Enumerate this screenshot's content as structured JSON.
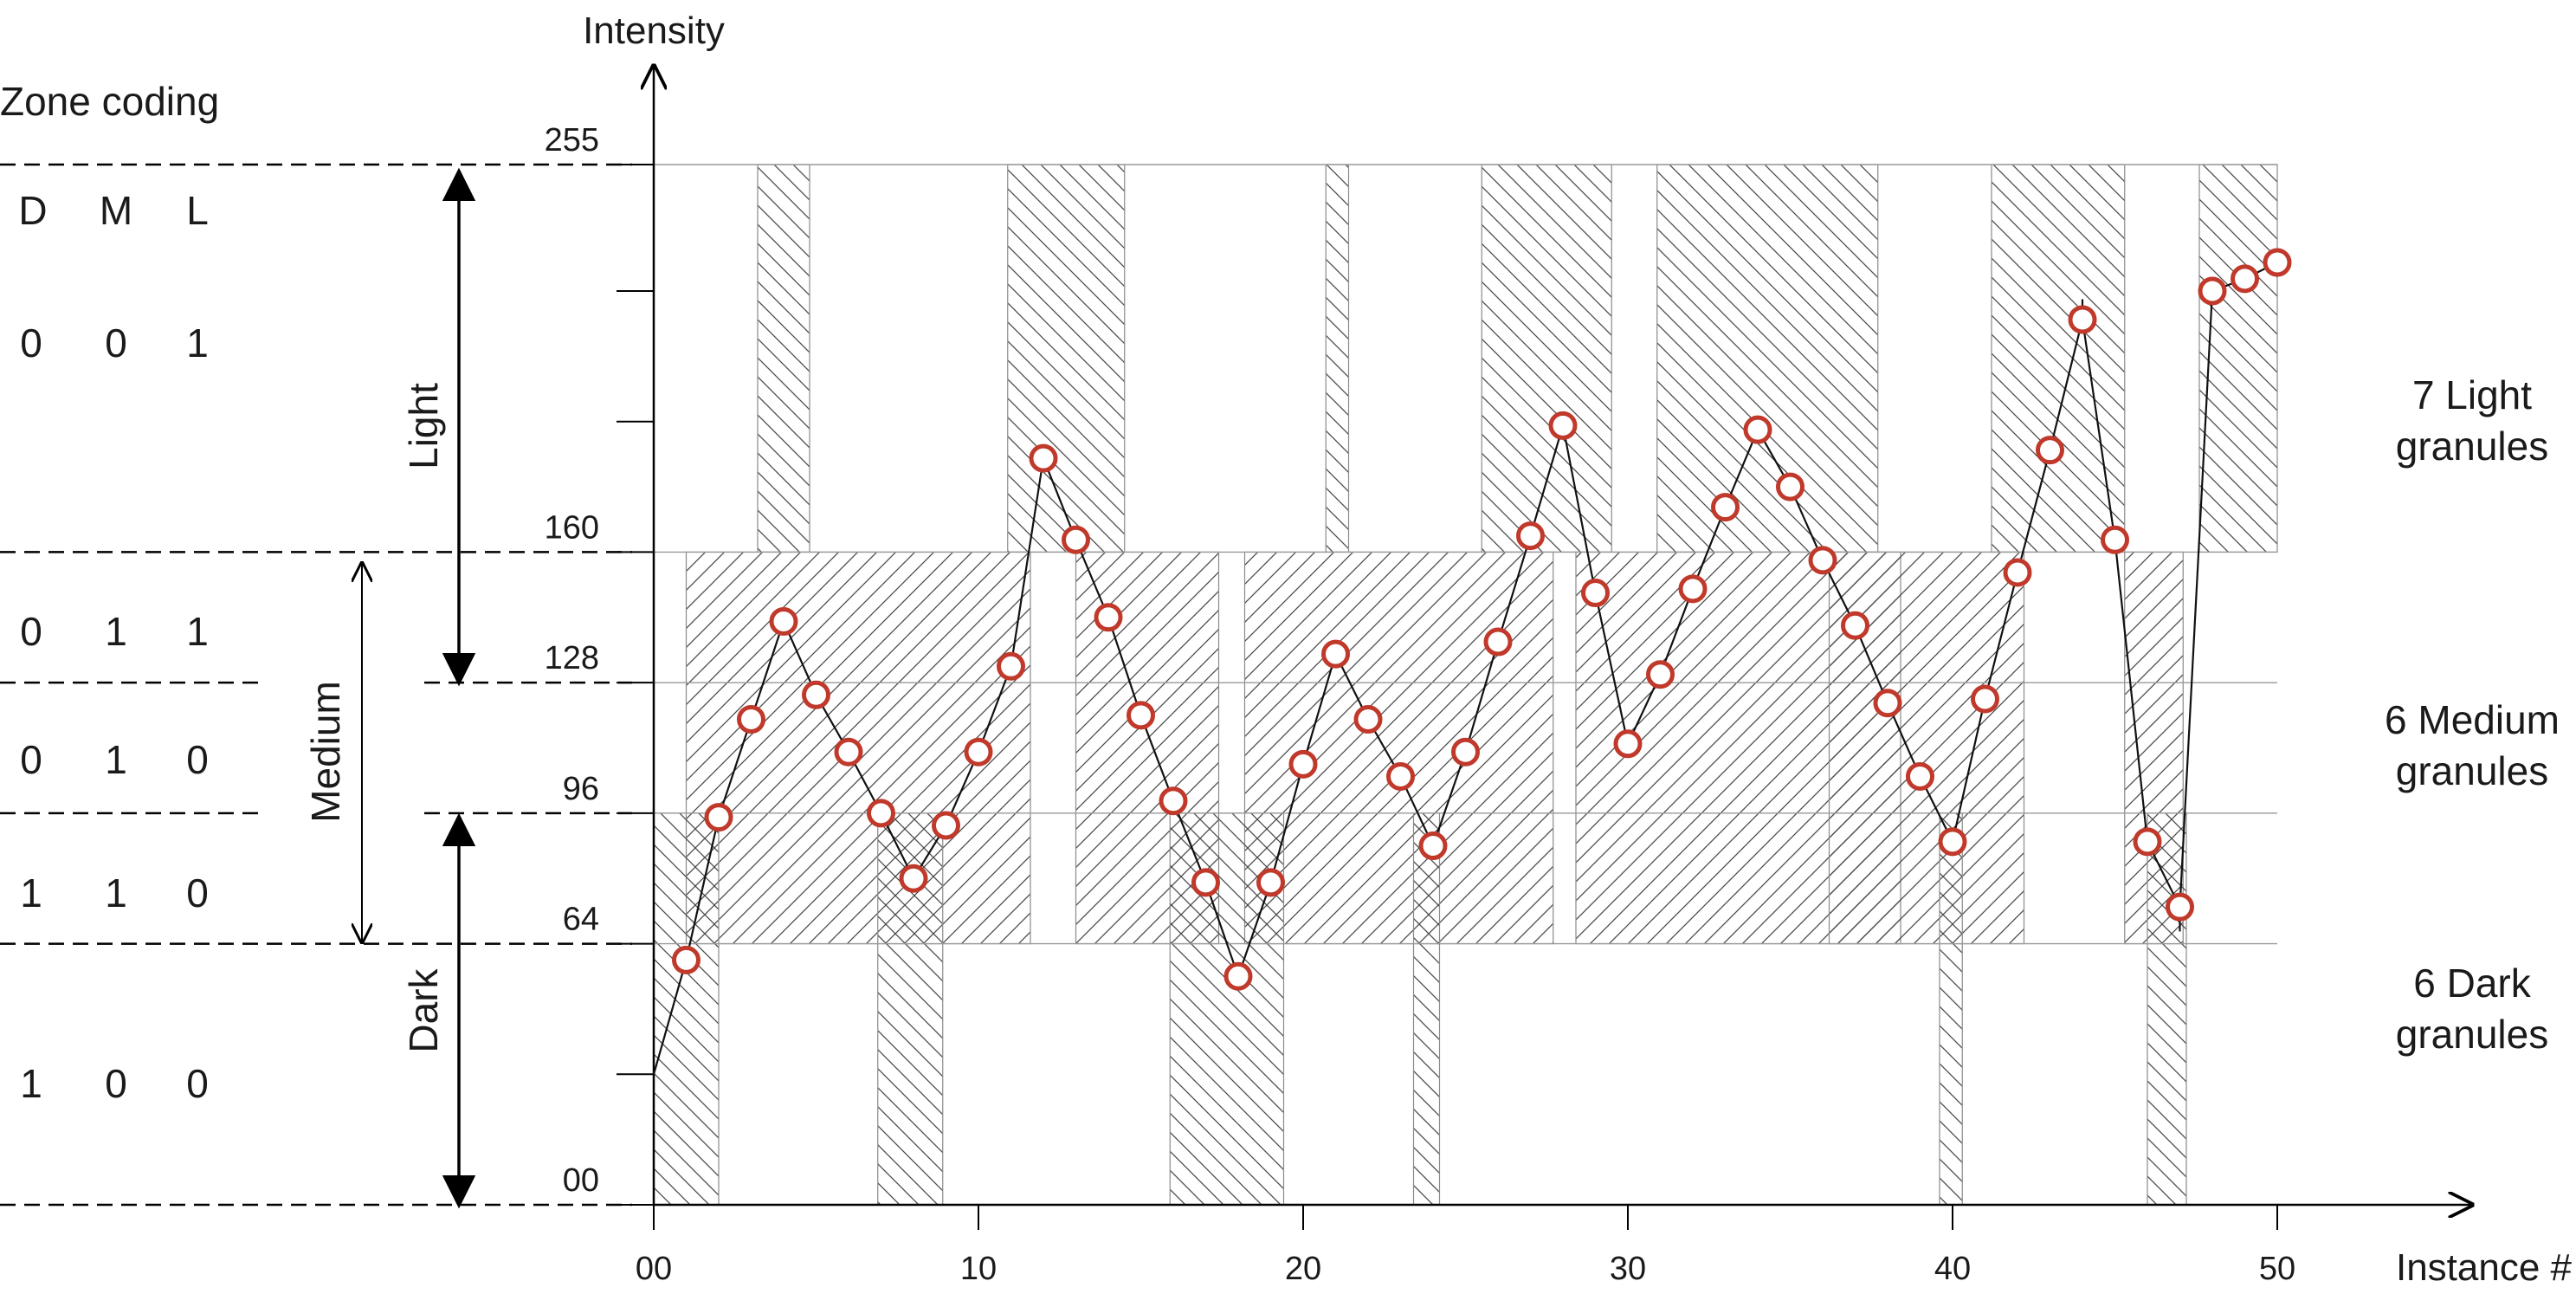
{
  "chart_data": {
    "type": "line",
    "ylabel": "Intensity",
    "xlabel": "Instance #",
    "xlim": [
      0,
      50
    ],
    "ylim": [
      0,
      255
    ],
    "x_ticks": [
      {
        "value": 0,
        "label": "00"
      },
      {
        "value": 10,
        "label": "10"
      },
      {
        "value": 20,
        "label": "20"
      },
      {
        "value": 30,
        "label": "30"
      },
      {
        "value": 40,
        "label": "40"
      },
      {
        "value": 50,
        "label": "50"
      }
    ],
    "y_ticks": [
      {
        "value": 0,
        "label": "00"
      },
      {
        "value": 64,
        "label": "64"
      },
      {
        "value": 96,
        "label": "96"
      },
      {
        "value": 128,
        "label": "128"
      },
      {
        "value": 160,
        "label": "160"
      },
      {
        "value": 255,
        "label": "255"
      }
    ],
    "y_minor_ticks": [
      32,
      192,
      224
    ],
    "thresholds": [
      64,
      96,
      128,
      160
    ],
    "points": [
      [
        0,
        32
      ],
      [
        1,
        60
      ],
      [
        2,
        95
      ],
      [
        3,
        119
      ],
      [
        4,
        143
      ],
      [
        5,
        125
      ],
      [
        6,
        111
      ],
      [
        7,
        96
      ],
      [
        8,
        80
      ],
      [
        9,
        93
      ],
      [
        10,
        111
      ],
      [
        11,
        132
      ],
      [
        12,
        183
      ],
      [
        13,
        163
      ],
      [
        14,
        144
      ],
      [
        15,
        120
      ],
      [
        16,
        99
      ],
      [
        17,
        79
      ],
      [
        18,
        56
      ],
      [
        19,
        79
      ],
      [
        20,
        108
      ],
      [
        21,
        135
      ],
      [
        22,
        119
      ],
      [
        23,
        105
      ],
      [
        24,
        88
      ],
      [
        25,
        111
      ],
      [
        26,
        138
      ],
      [
        27,
        164
      ],
      [
        28,
        191
      ],
      [
        29,
        150
      ],
      [
        30,
        113
      ],
      [
        31,
        130
      ],
      [
        32,
        151
      ],
      [
        33,
        171
      ],
      [
        34,
        190
      ],
      [
        35,
        176
      ],
      [
        36,
        158
      ],
      [
        37,
        142
      ],
      [
        38,
        123
      ],
      [
        39,
        105
      ],
      [
        40,
        89
      ],
      [
        41,
        124
      ],
      [
        42,
        155
      ],
      [
        43,
        185
      ],
      [
        44,
        217
      ],
      [
        45,
        163
      ],
      [
        46,
        89
      ],
      [
        47,
        73
      ],
      [
        48,
        224
      ],
      [
        49,
        227
      ],
      [
        50,
        231
      ]
    ],
    "line_segments": [
      [
        [
          0,
          32
        ],
        [
          1,
          60
        ]
      ],
      [
        [
          44,
          222
        ],
        [
          44,
          217
        ]
      ],
      [
        [
          47,
          73
        ],
        [
          47,
          67
        ]
      ]
    ],
    "granules": {
      "light": [
        [
          3.2,
          4.8
        ],
        [
          10.9,
          14.5
        ],
        [
          20.7,
          21.4
        ],
        [
          25.5,
          29.5
        ],
        [
          30.9,
          37.7
        ],
        [
          41.2,
          45.3
        ],
        [
          47.6,
          50
        ]
      ],
      "medium": [
        [
          1.0,
          11.6
        ],
        [
          13.0,
          17.4
        ],
        [
          18.2,
          27.7
        ],
        [
          28.4,
          38.4
        ],
        [
          36.2,
          42.2
        ],
        [
          45.3,
          47.1
        ]
      ],
      "dark": [
        [
          0,
          2.0
        ],
        [
          6.9,
          8.9
        ],
        [
          15.9,
          19.4
        ],
        [
          23.4,
          24.2
        ],
        [
          39.6,
          40.3
        ],
        [
          46.0,
          47.2
        ]
      ]
    },
    "marker_color": "#c0392b"
  },
  "zone_coding": {
    "title": "Zone coding",
    "headers": [
      "D",
      "M",
      "L"
    ],
    "rows": [
      {
        "d": "0",
        "m": "0",
        "l": "1"
      },
      {
        "d": "0",
        "m": "1",
        "l": "1"
      },
      {
        "d": "0",
        "m": "1",
        "l": "0"
      },
      {
        "d": "1",
        "m": "1",
        "l": "0"
      },
      {
        "d": "1",
        "m": "0",
        "l": "0"
      }
    ]
  },
  "zones": {
    "light": "Light",
    "medium": "Medium",
    "dark": "Dark"
  },
  "granule_labels": {
    "light": [
      "7 Light",
      "granules"
    ],
    "medium": [
      "6 Medium",
      "granules"
    ],
    "dark": [
      "6 Dark",
      "granules"
    ]
  }
}
